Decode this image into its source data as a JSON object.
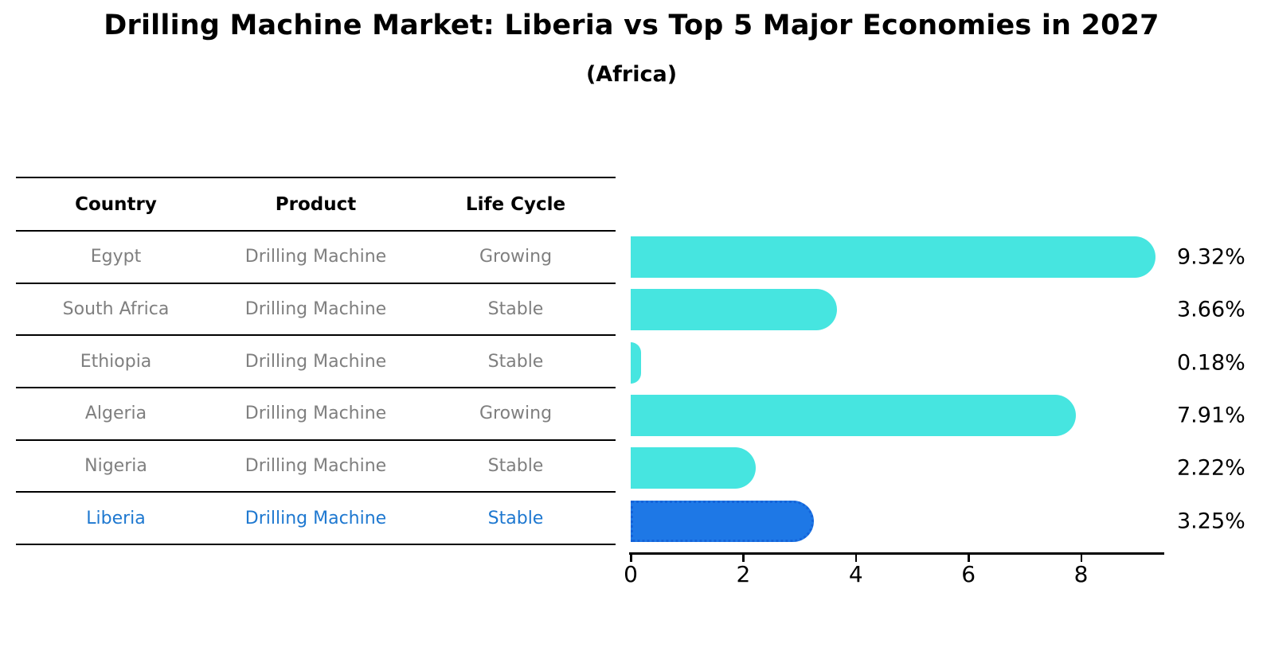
{
  "title": "Drilling Machine Market: Liberia vs Top 5 Major Economies in 2027",
  "subtitle": "(Africa)",
  "table": {
    "headers": [
      "Country",
      "Product",
      "Life Cycle"
    ],
    "rows": [
      {
        "country": "Egypt",
        "product": "Drilling Machine",
        "life_cycle": "Growing",
        "highlight": false
      },
      {
        "country": "South Africa",
        "product": "Drilling Machine",
        "life_cycle": "Stable",
        "highlight": false
      },
      {
        "country": "Ethiopia",
        "product": "Drilling Machine",
        "life_cycle": "Stable",
        "highlight": false
      },
      {
        "country": "Algeria",
        "product": "Drilling Machine",
        "life_cycle": "Growing",
        "highlight": false
      },
      {
        "country": "Nigeria",
        "product": "Drilling Machine",
        "life_cycle": "Stable",
        "highlight": false
      },
      {
        "country": "Liberia",
        "product": "Drilling Machine",
        "life_cycle": "Stable",
        "highlight": true
      }
    ]
  },
  "chart_data": {
    "type": "bar",
    "orientation": "horizontal",
    "categories": [
      "Egypt",
      "South Africa",
      "Ethiopia",
      "Algeria",
      "Nigeria",
      "Liberia"
    ],
    "values": [
      9.32,
      3.66,
      0.18,
      7.91,
      2.22,
      3.25
    ],
    "value_labels": [
      "9.32%",
      "3.66%",
      "0.18%",
      "7.91%",
      "2.22%",
      "3.25%"
    ],
    "x_ticks": [
      0,
      2,
      4,
      6,
      8
    ],
    "xlim": [
      0,
      9.5
    ],
    "grid": false,
    "legend": "none",
    "highlight_index": 5,
    "bar_color": "#46e5e0",
    "highlight_bar_color": "#1e78e6",
    "highlight_border_color": "#1463d9",
    "highlight_text_color": "#1e78d0",
    "row_text_color": "#7f7f7f",
    "axis_color": "#000000"
  }
}
